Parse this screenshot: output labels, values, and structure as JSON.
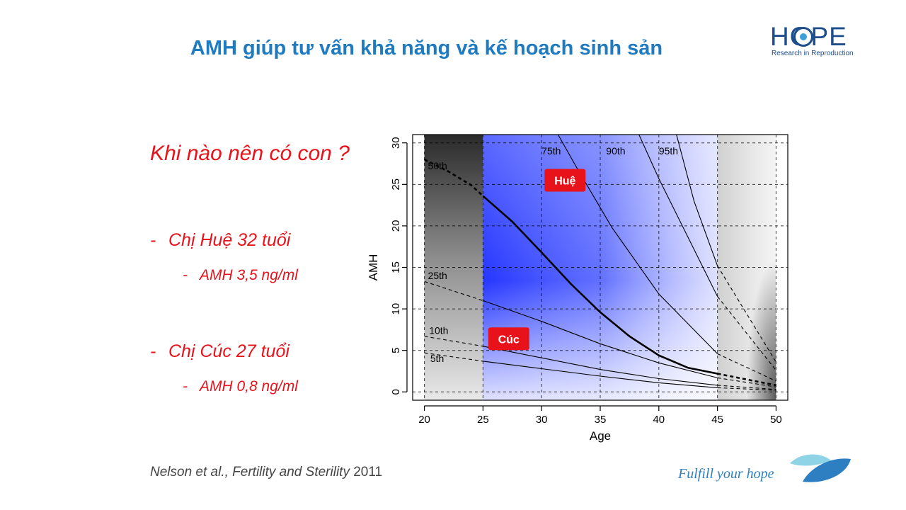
{
  "slide": {
    "title": "AMH giúp tư vấn khả năng và kế hoạch sinh sản",
    "logo_text": "HOPE",
    "logo_subtitle": "Research in Reproduction",
    "question": "Khi nào nên có con ?",
    "cases": [
      {
        "dash": "-",
        "label": "Chị Huệ 32 tuổi",
        "sub_dash": "-",
        "detail": "AMH 3,5 ng/ml"
      },
      {
        "dash": "-",
        "label": "Chị Cúc 27 tuổi",
        "sub_dash": "-",
        "detail": "AMH 0,8 ng/ml"
      }
    ],
    "citation": {
      "authors": "Nelson et al., ",
      "journal": "Fertility and Sterility",
      "year": " 2011"
    },
    "footer_slogan": "Fulfill your hope"
  },
  "colors": {
    "title": "#1f7ac0",
    "accent_red": "#e8121b",
    "logo_blue": "#1d4e8c",
    "chart_blue": "#1a2cff"
  },
  "icons": {
    "logo": "eye-icon",
    "footer": "leaf-icon"
  },
  "chart_data": {
    "type": "line",
    "xlabel": "Age",
    "ylabel": "AMH",
    "xlim": [
      19,
      51
    ],
    "ylim": [
      -1,
      31
    ],
    "x_ticks": [
      20,
      25,
      30,
      35,
      40,
      45,
      50
    ],
    "y_ticks": [
      0,
      5,
      10,
      15,
      20,
      25,
      30
    ],
    "grid": true,
    "highlight_region": [
      25,
      45
    ],
    "series": [
      {
        "name": "5th",
        "x": [
          20,
          25,
          30,
          35,
          40,
          45,
          50
        ],
        "values": [
          4.7,
          3.7,
          2.8,
          1.9,
          1.1,
          0.5,
          0.2
        ],
        "label_x": 20.5,
        "label_y": 3.6
      },
      {
        "name": "10th",
        "x": [
          20,
          25,
          30,
          35,
          40,
          45,
          50
        ],
        "values": [
          6.7,
          5.5,
          4.1,
          2.7,
          1.6,
          0.8,
          0.3
        ],
        "label_x": 20.4,
        "label_y": 7.0
      },
      {
        "name": "25th",
        "x": [
          20,
          25,
          30,
          35,
          40,
          45,
          50
        ],
        "values": [
          13.3,
          11.0,
          8.5,
          5.8,
          3.5,
          1.7,
          0.6
        ],
        "label_x": 20.3,
        "label_y": 13.6
      },
      {
        "name": "50th",
        "x": [
          20,
          22,
          24,
          25,
          27.5,
          30,
          32.5,
          35,
          37.5,
          40,
          42.5,
          45,
          50
        ],
        "values": [
          28.0,
          26.6,
          24.9,
          23.6,
          20.5,
          16.8,
          13.0,
          9.6,
          6.7,
          4.4,
          2.9,
          2.2,
          0.8
        ],
        "label_x": 20.3,
        "label_y": 26.8
      },
      {
        "name": "75th",
        "x": [
          31.4,
          33,
          36,
          40,
          45,
          50
        ],
        "values": [
          31,
          27,
          19.8,
          11.8,
          4.6,
          1.3
        ],
        "label_x": 30.0,
        "label_y": 28.6
      },
      {
        "name": "90th",
        "x": [
          38.3,
          40,
          45,
          50
        ],
        "values": [
          31,
          25.7,
          11.5,
          2.6
        ],
        "label_x": 35.5,
        "label_y": 28.6
      },
      {
        "name": "95th",
        "x": [
          41.5,
          43,
          45,
          50
        ],
        "values": [
          31,
          23,
          15.2,
          3.6
        ],
        "label_x": 40.0,
        "label_y": 28.6
      }
    ],
    "markers": [
      {
        "label": "Huệ",
        "x": 32,
        "y": 25.5
      },
      {
        "label": "Cúc",
        "x": 27.2,
        "y": 6.4
      }
    ]
  }
}
